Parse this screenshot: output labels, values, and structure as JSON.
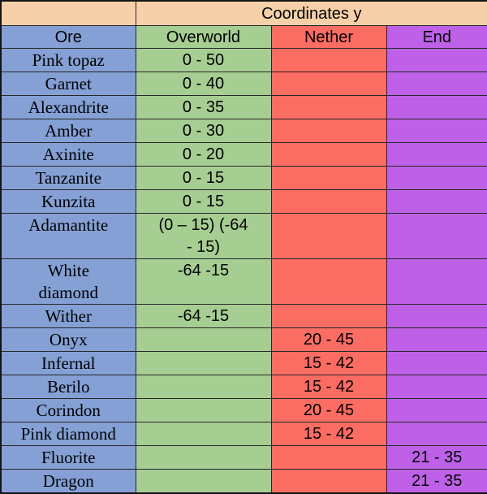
{
  "chart_data": {
    "type": "table",
    "title": "Coordinates y",
    "columns": [
      "Ore",
      "Overworld",
      "Nether",
      "End"
    ],
    "rows": [
      {
        "name": "Pink topaz",
        "overworld": "0 - 50",
        "nether": "",
        "end": ""
      },
      {
        "name": "Garnet",
        "overworld": "0 - 40",
        "nether": "",
        "end": ""
      },
      {
        "name": "Alexandrite",
        "overworld": "0 - 35",
        "nether": "",
        "end": ""
      },
      {
        "name": "Amber",
        "overworld": "0 - 30",
        "nether": "",
        "end": ""
      },
      {
        "name": "Axinite",
        "overworld": "0 - 20",
        "nether": "",
        "end": ""
      },
      {
        "name": "Tanzanite",
        "overworld": "0 - 15",
        "nether": "",
        "end": ""
      },
      {
        "name": "Kunzita",
        "overworld": "0 - 15",
        "nether": "",
        "end": ""
      },
      {
        "name": "Adamantite",
        "overworld": "(0 – 15) (-64 - 15)",
        "nether": "",
        "end": ""
      },
      {
        "name": "White diamond",
        "overworld": "-64 -15",
        "nether": "",
        "end": ""
      },
      {
        "name": "Wither",
        "overworld": "-64 -15",
        "nether": "",
        "end": ""
      },
      {
        "name": "Onyx",
        "overworld": "",
        "nether": "20 - 45",
        "end": ""
      },
      {
        "name": "Infernal",
        "overworld": "",
        "nether": "15 - 42",
        "end": ""
      },
      {
        "name": "Berilo",
        "overworld": "",
        "nether": "15 - 42",
        "end": ""
      },
      {
        "name": "Corindon",
        "overworld": "",
        "nether": "20 - 45",
        "end": ""
      },
      {
        "name": "Pink diamond",
        "overworld": "",
        "nether": "15 - 42",
        "end": ""
      },
      {
        "name": "Fluorite",
        "overworld": "",
        "nether": "",
        "end": "21 - 35"
      },
      {
        "name": "Dragon",
        "overworld": "",
        "nether": "",
        "end": "21 - 35"
      }
    ]
  },
  "header": {
    "title": "Coordinates y",
    "columns": {
      "ore": "Ore",
      "overworld": "Overworld",
      "nether": "Nether",
      "end": "End"
    }
  },
  "colors": {
    "peach": "#F6D0A9",
    "blue": "#84A0D5",
    "green": "#A6CE92",
    "red": "#FB6C63",
    "purple": "#BE61E8"
  }
}
